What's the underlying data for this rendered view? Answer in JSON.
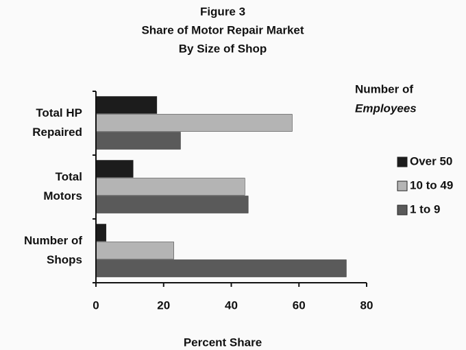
{
  "chart_data": {
    "type": "bar",
    "orientation": "horizontal",
    "title": [
      "Figure 3",
      "Share of Motor Repair Market",
      "By Size of Shop"
    ],
    "categories": [
      [
        "Total HP",
        "Repaired"
      ],
      [
        "Total",
        "Motors"
      ],
      [
        "Number of",
        "Shops"
      ]
    ],
    "series": [
      {
        "name": "Over 50",
        "color": "#1c1c1c",
        "values": [
          18,
          11,
          3
        ]
      },
      {
        "name": "10 to 49",
        "color": "#b4b4b4",
        "values": [
          58,
          44,
          23
        ]
      },
      {
        "name": "1 to 9",
        "color": "#5a5a5a",
        "values": [
          25,
          45,
          74
        ]
      }
    ],
    "legend_title": [
      "Number of",
      "Employees"
    ],
    "x_label": "Percent Share",
    "xlim": [
      0,
      80
    ],
    "xticks": [
      0,
      20,
      40,
      60,
      80
    ]
  }
}
